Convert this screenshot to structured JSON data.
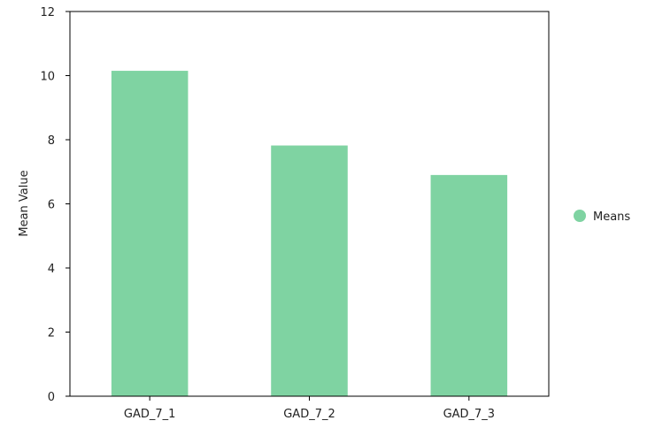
{
  "chart_data": {
    "type": "bar",
    "categories": [
      "GAD_7_1",
      "GAD_7_2",
      "GAD_7_3"
    ],
    "series": [
      {
        "name": "Means",
        "values": [
          10.15,
          7.82,
          6.9
        ]
      }
    ],
    "title": "",
    "xlabel": "",
    "ylabel": "Mean Value",
    "ylim": [
      0,
      12
    ],
    "yticks": [
      0,
      2,
      4,
      6,
      8,
      10,
      12
    ],
    "grid": false,
    "legend_position": "right",
    "colors": {
      "bar": "#7fd3a2",
      "axis": "#000000"
    }
  }
}
